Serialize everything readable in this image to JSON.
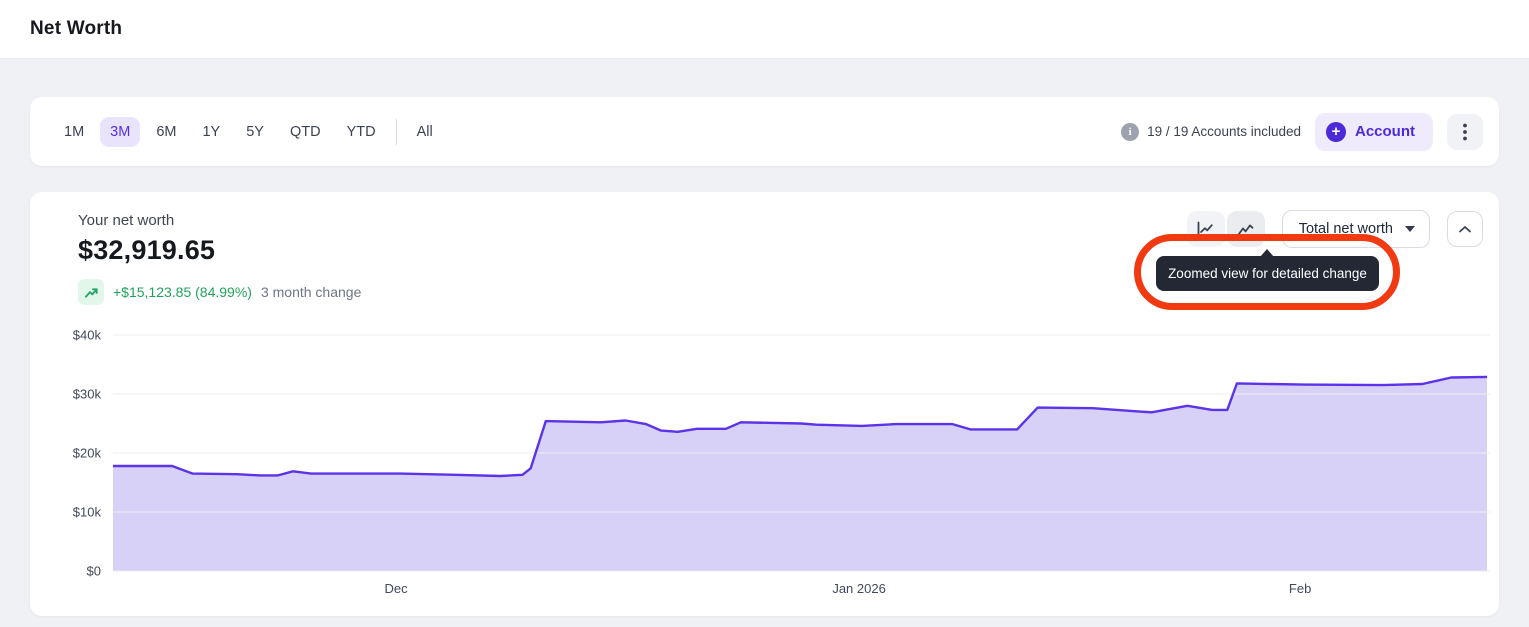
{
  "header": {
    "title": "Net Worth"
  },
  "toolbar": {
    "ranges": [
      {
        "label": "1M",
        "selected": false
      },
      {
        "label": "3M",
        "selected": true
      },
      {
        "label": "6M",
        "selected": false
      },
      {
        "label": "1Y",
        "selected": false
      },
      {
        "label": "5Y",
        "selected": false
      },
      {
        "label": "QTD",
        "selected": false
      },
      {
        "label": "YTD",
        "selected": false
      }
    ],
    "all_label": "All",
    "accounts_info": "19 / 19 Accounts included",
    "account_button": "Account"
  },
  "summary": {
    "label": "Your net worth",
    "value": "$32,919.65",
    "change": "+$15,123.85 (84.99%)",
    "change_period": "3 month change"
  },
  "controls": {
    "series_select": "Total net worth",
    "tooltip": "Zoomed view for detailed change"
  },
  "colors": {
    "accent_purple": "#5431E6",
    "chart_line": "#5B33E8",
    "chart_fill": "#D7D0F7",
    "grid": "#ECEEF1",
    "axis_text": "#42495A",
    "positive_green": "#1FA35C",
    "annotation_red": "#F23A12",
    "tooltip_bg": "#232834"
  },
  "chart_data": {
    "type": "area",
    "title": "Total net worth over 3 months",
    "units": "USD thousands",
    "ylim": [
      0,
      40
    ],
    "grid": true,
    "y_ticks": [
      {
        "label": "$0",
        "value": 0
      },
      {
        "label": "$10k",
        "value": 10
      },
      {
        "label": "$20k",
        "value": 20
      },
      {
        "label": "$30k",
        "value": 30
      },
      {
        "label": "$40k",
        "value": 40
      }
    ],
    "x_ticks": [
      {
        "label": "Dec",
        "f": 0.206
      },
      {
        "label": "Jan 2026",
        "f": 0.543
      },
      {
        "label": "Feb",
        "f": 0.864
      }
    ],
    "series": [
      {
        "name": "Total net worth",
        "points": [
          {
            "f": 0.0,
            "v": 17.8
          },
          {
            "f": 0.043,
            "v": 17.8
          },
          {
            "f": 0.058,
            "v": 16.5
          },
          {
            "f": 0.09,
            "v": 16.4
          },
          {
            "f": 0.107,
            "v": 16.2
          },
          {
            "f": 0.12,
            "v": 16.2
          },
          {
            "f": 0.131,
            "v": 16.9
          },
          {
            "f": 0.144,
            "v": 16.5
          },
          {
            "f": 0.209,
            "v": 16.5
          },
          {
            "f": 0.249,
            "v": 16.3
          },
          {
            "f": 0.282,
            "v": 16.1
          },
          {
            "f": 0.298,
            "v": 16.3
          },
          {
            "f": 0.304,
            "v": 17.4
          },
          {
            "f": 0.315,
            "v": 25.4
          },
          {
            "f": 0.355,
            "v": 25.2
          },
          {
            "f": 0.373,
            "v": 25.5
          },
          {
            "f": 0.388,
            "v": 24.9
          },
          {
            "f": 0.399,
            "v": 23.8
          },
          {
            "f": 0.411,
            "v": 23.6
          },
          {
            "f": 0.425,
            "v": 24.1
          },
          {
            "f": 0.446,
            "v": 24.1
          },
          {
            "f": 0.457,
            "v": 25.2
          },
          {
            "f": 0.501,
            "v": 25.0
          },
          {
            "f": 0.512,
            "v": 24.8
          },
          {
            "f": 0.545,
            "v": 24.6
          },
          {
            "f": 0.57,
            "v": 24.9
          },
          {
            "f": 0.611,
            "v": 24.9
          },
          {
            "f": 0.624,
            "v": 24.0
          },
          {
            "f": 0.658,
            "v": 24.0
          },
          {
            "f": 0.673,
            "v": 27.7
          },
          {
            "f": 0.713,
            "v": 27.6
          },
          {
            "f": 0.742,
            "v": 27.1
          },
          {
            "f": 0.756,
            "v": 26.9
          },
          {
            "f": 0.782,
            "v": 28.0
          },
          {
            "f": 0.8,
            "v": 27.3
          },
          {
            "f": 0.811,
            "v": 27.3
          },
          {
            "f": 0.818,
            "v": 31.8
          },
          {
            "f": 0.866,
            "v": 31.6
          },
          {
            "f": 0.924,
            "v": 31.5
          },
          {
            "f": 0.953,
            "v": 31.7
          },
          {
            "f": 0.974,
            "v": 32.8
          },
          {
            "f": 1.0,
            "v": 32.9
          }
        ]
      }
    ]
  }
}
